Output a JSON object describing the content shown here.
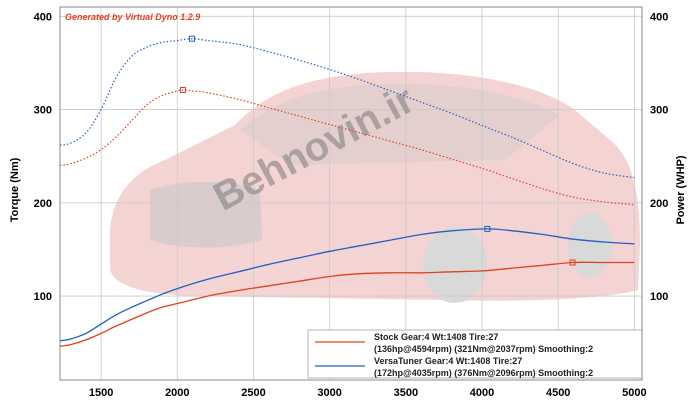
{
  "header": {
    "generator_text": "Generated by Virtual Dyno 1.2.9"
  },
  "watermark": {
    "text": "Behnovin.ir"
  },
  "colors": {
    "stock": "#e2401f",
    "versatuner": "#2060c0",
    "grid": "#c9c9c9",
    "header_text": "#e2401f",
    "car_body": "#d23a3a",
    "watermark": "#7a7a7a"
  },
  "chart_data": {
    "type": "line",
    "title": "",
    "xlabel": "",
    "ylabel_left": "Torque (Nm)",
    "ylabel_right": "Power (WHP)",
    "xlim": [
      1230,
      5050
    ],
    "ylim": [
      10,
      410
    ],
    "grid": true,
    "legend_position": "bottom-right",
    "x_ticks": [
      "1500",
      "2000",
      "2500",
      "3000",
      "3500",
      "4000",
      "4500",
      "5000"
    ],
    "y_ticks_left": [
      "100",
      "200",
      "300",
      "400"
    ],
    "y_ticks_right": [
      "100",
      "200",
      "300",
      "400"
    ],
    "legend": [
      {
        "line1": "Stock Gear:4 Wt:1408 Tire:27",
        "line2": "(136hp@4594rpm) (321Nm@2037rpm) Smoothing:2",
        "series_color": "stock"
      },
      {
        "line1": "VersaTuner Gear:4 Wt:1408 Tire:27",
        "line2": "(172hp@4035rpm) (376Nm@2096rpm) Smoothing:2",
        "series_color": "versatuner"
      }
    ],
    "series": [
      {
        "name": "Stock torque",
        "color_key": "stock",
        "style": "dotted",
        "x": [
          1230,
          1300,
          1400,
          1500,
          1600,
          1700,
          1800,
          1900,
          2000,
          2037,
          2100,
          2200,
          2400,
          2600,
          2800,
          3000,
          3200,
          3400,
          3600,
          3800,
          4000,
          4200,
          4400,
          4600,
          4800,
          5000
        ],
        "y": [
          240,
          242,
          248,
          257,
          271,
          288,
          305,
          315,
          320,
          321,
          320,
          318,
          311,
          302,
          293,
          284,
          275,
          266,
          257,
          247,
          237,
          226,
          215,
          206,
          201,
          198
        ]
      },
      {
        "name": "VersaTuner torque",
        "color_key": "versatuner",
        "style": "dotted",
        "x": [
          1230,
          1300,
          1400,
          1500,
          1600,
          1700,
          1800,
          1900,
          2000,
          2096,
          2200,
          2400,
          2600,
          2800,
          3000,
          3200,
          3400,
          3600,
          3800,
          4000,
          4200,
          4400,
          4600,
          4800,
          5000
        ],
        "y": [
          262,
          264,
          275,
          300,
          335,
          357,
          367,
          372,
          374,
          376,
          374,
          370,
          362,
          353,
          343,
          332,
          320,
          308,
          296,
          283,
          270,
          256,
          242,
          232,
          227
        ]
      },
      {
        "name": "Stock power",
        "color_key": "stock",
        "style": "solid",
        "x": [
          1230,
          1300,
          1400,
          1500,
          1600,
          1700,
          1800,
          1900,
          2000,
          2200,
          2400,
          2600,
          2800,
          3000,
          3200,
          3400,
          3600,
          3800,
          4000,
          4200,
          4400,
          4594,
          4800,
          5000
        ],
        "y": [
          46,
          48,
          53,
          60,
          68,
          75,
          82,
          88,
          92,
          100,
          106,
          111,
          116,
          121,
          124,
          125,
          125,
          126,
          127,
          130,
          133,
          136,
          136,
          136
        ]
      },
      {
        "name": "VersaTuner power",
        "color_key": "versatuner",
        "style": "solid",
        "x": [
          1230,
          1300,
          1400,
          1500,
          1600,
          1700,
          1800,
          1900,
          2000,
          2200,
          2400,
          2600,
          2800,
          3000,
          3200,
          3400,
          3600,
          3800,
          4035,
          4200,
          4400,
          4600,
          4800,
          5000
        ],
        "y": [
          52,
          54,
          60,
          70,
          80,
          88,
          95,
          102,
          108,
          118,
          126,
          134,
          141,
          148,
          154,
          160,
          166,
          170,
          172,
          170,
          166,
          161,
          158,
          156
        ]
      }
    ],
    "peak_markers": [
      {
        "x": 2037,
        "y": 321,
        "color_key": "stock"
      },
      {
        "x": 2096,
        "y": 376,
        "color_key": "versatuner"
      },
      {
        "x": 4594,
        "y": 136,
        "color_key": "stock"
      },
      {
        "x": 4035,
        "y": 172,
        "color_key": "versatuner"
      }
    ]
  }
}
